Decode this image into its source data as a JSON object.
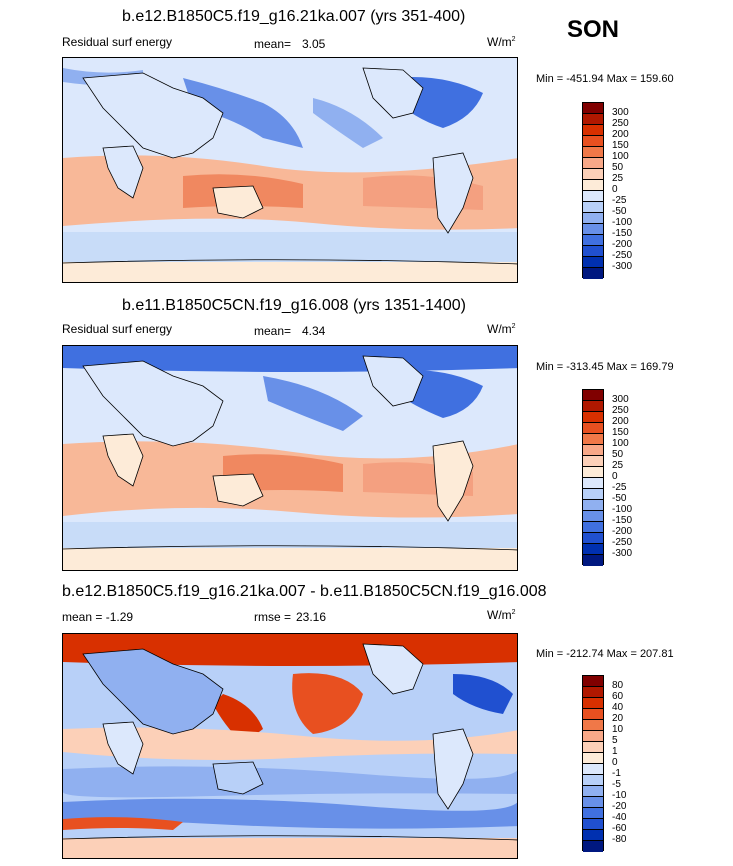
{
  "season": "SON",
  "units_base": "W/m",
  "units_sup": "2",
  "panels": [
    {
      "title": "b.e12.B1850C5.f19_g16.21ka.007 (yrs 351-400)",
      "left_label": "Residual surf energy",
      "stat_label": "mean=",
      "stat_value": "3.05",
      "minmax": "Min = -451.94 Max = 159.60",
      "levels": [
        "300",
        "250",
        "200",
        "150",
        "100",
        "50",
        "25",
        "0",
        "-25",
        "-50",
        "-100",
        "-150",
        "-200",
        "-250",
        "-300"
      ]
    },
    {
      "title": "b.e11.B1850C5CN.f19_g16.008 (yrs 1351-1400)",
      "left_label": "Residual surf energy",
      "stat_label": "mean=",
      "stat_value": "4.34",
      "minmax": "Min = -313.45 Max = 169.79",
      "levels": [
        "300",
        "250",
        "200",
        "150",
        "100",
        "50",
        "25",
        "0",
        "-25",
        "-50",
        "-100",
        "-150",
        "-200",
        "-250",
        "-300"
      ]
    },
    {
      "title": "b.e12.B1850C5.f19_g16.21ka.007 - b.e11.B1850C5CN.f19_g16.008",
      "left_label": "mean =  -1.29",
      "stat_label": "rmse =",
      "stat_value": "23.16",
      "minmax": "Min = -212.74 Max = 207.81",
      "levels": [
        "80",
        "60",
        "40",
        "20",
        "10",
        "5",
        "1",
        "0",
        "-1",
        "-5",
        "-10",
        "-20",
        "-40",
        "-60",
        "-80"
      ]
    }
  ],
  "colors": {
    "scale": [
      "#800000",
      "#b01800",
      "#d83000",
      "#e85020",
      "#f07848",
      "#f8a888",
      "#fcd0b8",
      "#fdebd8",
      "#dce8fc",
      "#b8d0f8",
      "#90b0f0",
      "#6890e8",
      "#4070e0",
      "#2050d0",
      "#0030b0",
      "#001880"
    ]
  }
}
